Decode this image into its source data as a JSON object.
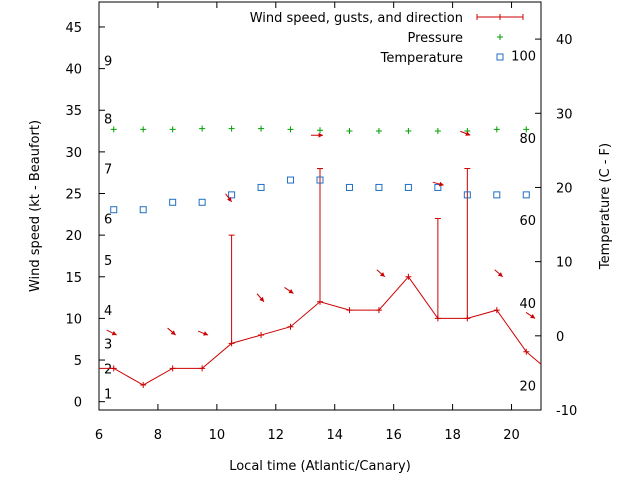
{
  "chart_data": {
    "type": "line",
    "xlabel": "Local time (Atlantic/Canary)",
    "ylabel": "Wind speed (kt - Beaufort)",
    "y2label": "Temperature (C - F)",
    "xlim": [
      6,
      21
    ],
    "ylim": [
      -1,
      48
    ],
    "y2lim": [
      -10,
      45
    ],
    "x_ticks": [
      6,
      8,
      10,
      12,
      14,
      16,
      18,
      20
    ],
    "y_ticks": [
      0,
      5,
      10,
      15,
      20,
      25,
      30,
      35,
      40,
      45
    ],
    "y2_ticks": [
      -10,
      0,
      10,
      20,
      30,
      40
    ],
    "beaufort_labels": [
      {
        "text": "1",
        "y": 1
      },
      {
        "text": "2",
        "y": 4
      },
      {
        "text": "3",
        "y": 7
      },
      {
        "text": "4",
        "y": 11
      },
      {
        "text": "5",
        "y": 17
      },
      {
        "text": "6",
        "y": 22
      },
      {
        "text": "7",
        "y": 28
      },
      {
        "text": "8",
        "y": 34
      },
      {
        "text": "9",
        "y": 41
      }
    ],
    "fahrenheit_labels": [
      {
        "text": "20",
        "celsius": -6.7
      },
      {
        "text": "40",
        "celsius": 4.4
      },
      {
        "text": "60",
        "celsius": 15.6
      },
      {
        "text": "80",
        "celsius": 26.7
      },
      {
        "text": "100",
        "celsius": 37.8
      }
    ],
    "legend": [
      {
        "label": "Wind speed, gusts, and direction",
        "color": "#cc0000",
        "marker": "plus-line"
      },
      {
        "label": "Pressure",
        "color": "#00a000",
        "marker": "plus"
      },
      {
        "label": "Temperature",
        "color": "#1f6fc4",
        "marker": "square"
      }
    ],
    "legend_position": "top-right",
    "series": [
      {
        "name": "Wind speed, gusts, and direction",
        "color": "#cc0000",
        "x": [
          6,
          6.5,
          7.5,
          8.5,
          9.5,
          10.5,
          11.5,
          12.5,
          13.5,
          14.5,
          15.5,
          16.5,
          17.5,
          18.5,
          19.5,
          20.5,
          21
        ],
        "y": [
          4,
          4,
          2,
          4,
          4,
          7,
          8,
          9,
          12,
          11,
          11,
          15,
          10,
          10,
          11,
          6,
          4.5
        ],
        "gusts": [
          {
            "x": 10.5,
            "y": 20
          },
          {
            "x": 13.5,
            "y": 28
          },
          {
            "x": 17.5,
            "y": 22
          },
          {
            "x": 18.5,
            "y": 28
          }
        ]
      },
      {
        "name": "Pressure",
        "color": "#00a000",
        "x": [
          6.5,
          7.5,
          8.5,
          9.5,
          10.5,
          11.5,
          12.5,
          13.5,
          14.5,
          15.5,
          16.5,
          17.5,
          18.5,
          19.5,
          20.5
        ],
        "y": [
          32.7,
          32.7,
          32.7,
          32.8,
          32.8,
          32.8,
          32.7,
          32.6,
          32.5,
          32.5,
          32.5,
          32.5,
          32.5,
          32.7,
          32.7
        ]
      },
      {
        "name": "Temperature",
        "color": "#1f6fc4",
        "axis": "y2",
        "x": [
          6.5,
          7.5,
          8.5,
          9.5,
          10.5,
          11.5,
          12.5,
          13.5,
          14.5,
          15.5,
          16.5,
          17.5,
          18.5,
          19.5,
          20.5
        ],
        "y": [
          17,
          17,
          18,
          18,
          19,
          20,
          21,
          21,
          20,
          20,
          20,
          20,
          19,
          19,
          19
        ]
      }
    ],
    "wind_arrows": [
      {
        "x": 6.6,
        "y": 8,
        "dx": -10,
        "dy": -5
      },
      {
        "x": 8.6,
        "y": 8,
        "dx": -8,
        "dy": -7
      },
      {
        "x": 9.7,
        "y": 8,
        "dx": -10,
        "dy": -4
      },
      {
        "x": 10.5,
        "y": 24,
        "dx": -6,
        "dy": -8
      },
      {
        "x": 11.6,
        "y": 12,
        "dx": -7,
        "dy": -8
      },
      {
        "x": 12.6,
        "y": 13,
        "dx": -9,
        "dy": -6
      },
      {
        "x": 13.6,
        "y": 32,
        "dx": -12,
        "dy": 0
      },
      {
        "x": 15.7,
        "y": 15,
        "dx": -8,
        "dy": -7
      },
      {
        "x": 17.7,
        "y": 26,
        "dx": -11,
        "dy": -3
      },
      {
        "x": 18.6,
        "y": 32,
        "dx": -10,
        "dy": -4
      },
      {
        "x": 19.7,
        "y": 15,
        "dx": -8,
        "dy": -7
      },
      {
        "x": 20.8,
        "y": 10,
        "dx": -9,
        "dy": -6
      }
    ]
  }
}
